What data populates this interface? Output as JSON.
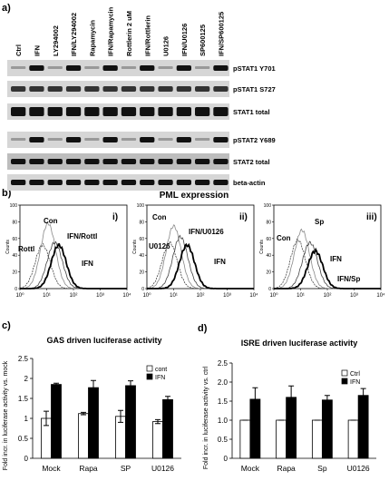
{
  "figure": {
    "a": {
      "label": "a)",
      "lanes": [
        "Ctrl",
        "IFN",
        "LY294002",
        "IFN/LY294002",
        "Rapamycin",
        "IFN/Rapamycin",
        "Rottlerin 2 uM",
        "IFN/Rottlerin",
        "U0126",
        "IFN/U0126",
        "SP600125",
        "IFN/SP600125"
      ],
      "rows": [
        "pSTAT1 Y701",
        "pSTAT1 S727",
        "STAT1 total",
        "pSTAT2 Y689",
        "STAT2 total",
        "beta-actin"
      ]
    },
    "b": {
      "label": "b)",
      "title": "PML expression",
      "y_label": "Counts",
      "yticks": [
        0,
        20,
        40,
        60,
        80,
        100
      ],
      "xticks": [
        {
          "value": 0,
          "label": "10⁰"
        },
        {
          "value": 1,
          "label": "10¹"
        },
        {
          "value": 2,
          "label": "10²"
        },
        {
          "value": 3,
          "label": "10³"
        },
        {
          "value": 4,
          "label": "10⁴"
        }
      ],
      "plots": [
        {
          "label": "i)",
          "annotations": [
            "Con",
            "Rottl",
            "IFN/Rottl",
            "IFN"
          ]
        },
        {
          "label": "ii)",
          "annotations": [
            "Con",
            "U0126",
            "IFN/U0126",
            "IFN"
          ]
        },
        {
          "label": "iii)",
          "annotations": [
            "Sp",
            "Con",
            "IFN",
            "IFN/Sp"
          ]
        }
      ]
    }
  },
  "chart_data": [
    {
      "type": "bar",
      "label": "c)",
      "title": "GAS driven luciferase activity",
      "y_label": "Fold incr. in luciferase activity vs. mock",
      "categories": [
        "Mock",
        "Rapa",
        "SP",
        "U0126"
      ],
      "series": [
        {
          "name": "cont",
          "color": "#ffffff",
          "values": [
            1.0,
            1.12,
            1.05,
            0.92
          ],
          "errors": [
            0.18,
            0.03,
            0.15,
            0.05
          ]
        },
        {
          "name": "IFN",
          "color": "#000000",
          "values": [
            1.85,
            1.77,
            1.82,
            1.47
          ],
          "errors": [
            0.03,
            0.18,
            0.12,
            0.08
          ]
        }
      ],
      "ylim": [
        0,
        2.5
      ],
      "yticks": [
        0,
        0.5,
        1,
        1.5,
        2,
        2.5
      ],
      "legend": "top-right"
    },
    {
      "type": "bar",
      "label": "d)",
      "title": "ISRE driven luciferase activity",
      "y_label": "Fold incr. in luciferase activity vs. ctrl",
      "categories": [
        "Mock",
        "Rapa",
        "Sp",
        "U0126"
      ],
      "series": [
        {
          "name": "Ctrl",
          "color": "#ffffff",
          "values": [
            1,
            1,
            1,
            1
          ],
          "errors": [
            0,
            0,
            0,
            0
          ]
        },
        {
          "name": "IFN",
          "color": "#000000",
          "values": [
            1.55,
            1.6,
            1.53,
            1.65
          ],
          "errors": [
            0.3,
            0.3,
            0.12,
            0.18
          ]
        }
      ],
      "ylim": [
        0,
        2.5
      ],
      "yticks": [
        0,
        {
          "value": 0.5,
          "label": "0.5"
        },
        {
          "value": 1,
          "label": "1.0"
        },
        {
          "value": 1.5,
          "label": "1.5"
        },
        {
          "value": 2,
          "label": "2.0"
        },
        {
          "value": 2.5,
          "label": "2.5"
        }
      ],
      "legend": "top-right"
    }
  ]
}
